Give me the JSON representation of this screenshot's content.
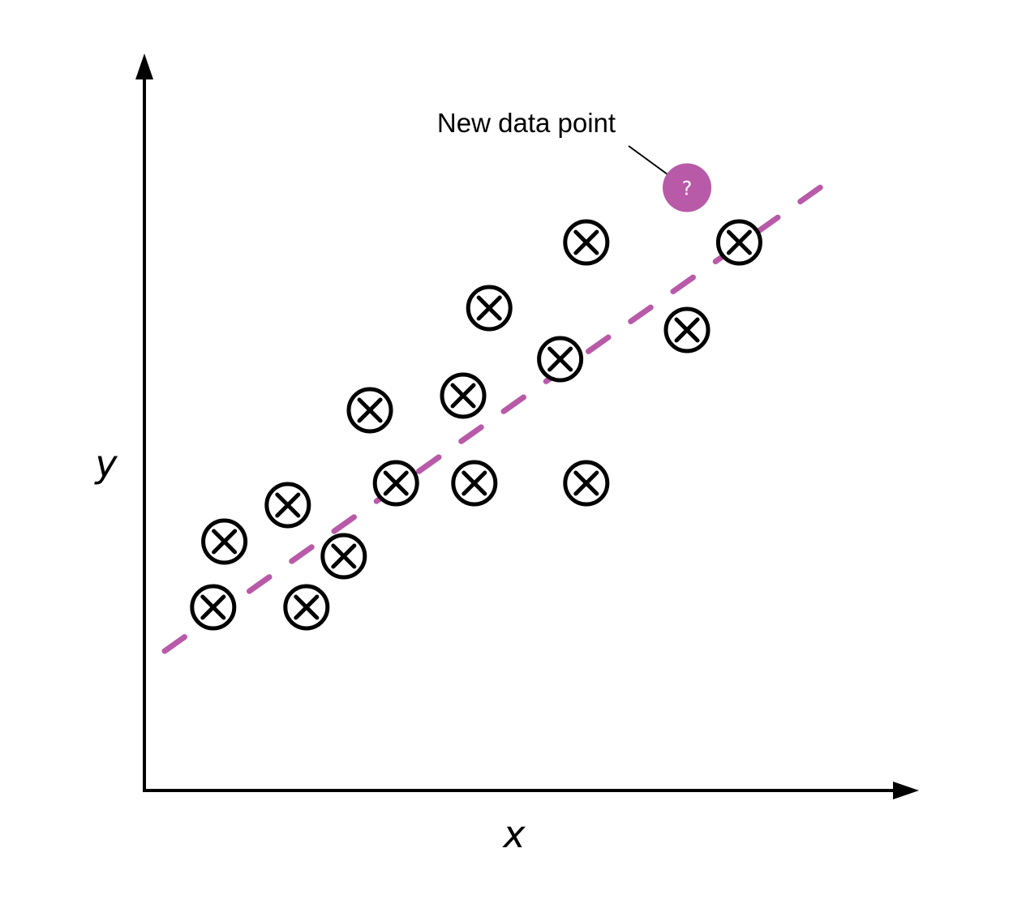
{
  "chart_data": {
    "type": "scatter",
    "xlabel": "x",
    "ylabel": "y",
    "xlim": [
      0,
      100
    ],
    "ylim": [
      0,
      100
    ],
    "grid": false,
    "legend": "none",
    "series": [
      {
        "marker": "circled-x",
        "color": "#000000",
        "points": [
          {
            "x": 9,
            "y": 24
          },
          {
            "x": 10.5,
            "y": 33
          },
          {
            "x": 19,
            "y": 38
          },
          {
            "x": 21.5,
            "y": 24
          },
          {
            "x": 26.5,
            "y": 31
          },
          {
            "x": 30,
            "y": 51
          },
          {
            "x": 33.5,
            "y": 41
          },
          {
            "x": 42.5,
            "y": 53
          },
          {
            "x": 44,
            "y": 41
          },
          {
            "x": 46,
            "y": 65
          },
          {
            "x": 55.5,
            "y": 58
          },
          {
            "x": 59,
            "y": 74
          },
          {
            "x": 59,
            "y": 41
          },
          {
            "x": 72.5,
            "y": 62
          },
          {
            "x": 79.5,
            "y": 74
          }
        ]
      }
    ],
    "trendline": {
      "style": "dashed",
      "color": "#b85aa8",
      "from": {
        "x": 2.5,
        "y": 18
      },
      "to": {
        "x": 91,
        "y": 82
      }
    },
    "new_point": {
      "x": 72.5,
      "y": 81.5,
      "label": "?",
      "color": "#b85aa8"
    },
    "annotations": [
      {
        "text": "New data point",
        "target": "new_point"
      }
    ]
  }
}
